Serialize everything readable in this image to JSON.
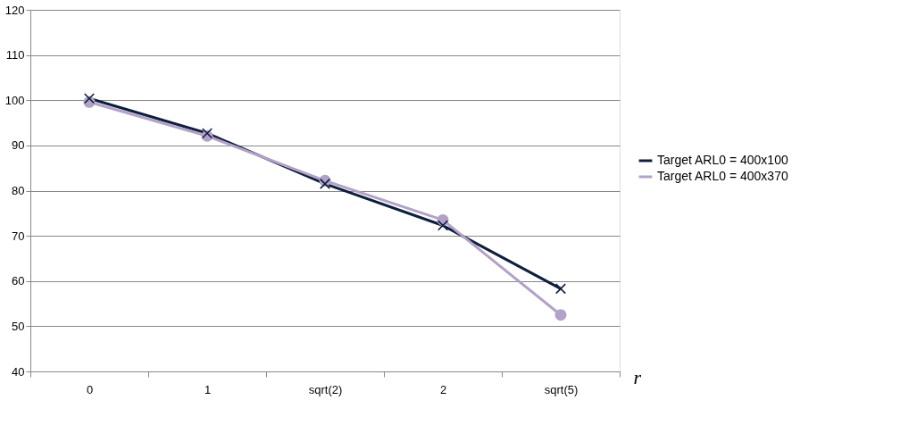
{
  "chart_data": {
    "type": "line",
    "xlabel": "r",
    "categories": [
      "0",
      "1",
      "sqrt(2)",
      "2",
      "sqrt(5)"
    ],
    "series": [
      {
        "name": "Target ARL0 = 400x100",
        "color": "#0d1f3c",
        "marker": "cross",
        "values": [
          100.4,
          92.7,
          81.5,
          72.3,
          58.3
        ]
      },
      {
        "name": "Target ARL0 = 400x370",
        "color": "#b3a2c7",
        "marker": "circle",
        "values": [
          99.6,
          92.1,
          82.2,
          73.5,
          52.5
        ]
      }
    ],
    "ylim": [
      40,
      120
    ],
    "yticks": [
      40,
      50,
      60,
      70,
      80,
      90,
      100,
      110,
      120
    ],
    "grid": "y",
    "legend": "right",
    "line_style": "solid"
  }
}
